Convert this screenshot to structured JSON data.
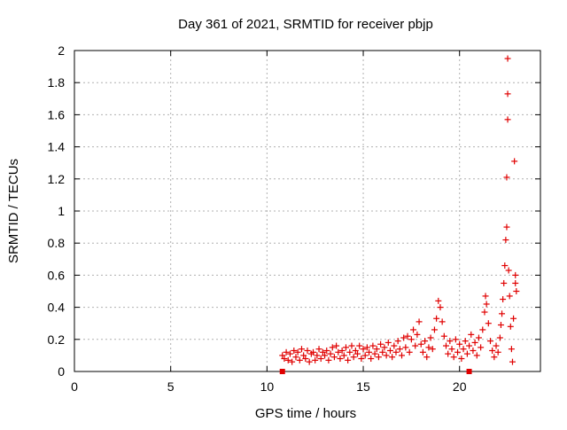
{
  "chart_data": {
    "type": "scatter",
    "title": "Day 361 of 2021, SRMTID for receiver pbjp",
    "xlabel": "GPS time / hours",
    "ylabel": "SRMTID / TECUs",
    "xlim": [
      0,
      24.2
    ],
    "ylim": [
      0,
      2
    ],
    "xticks": [
      0,
      5,
      10,
      15,
      20
    ],
    "yticks": [
      0,
      0.2,
      0.4,
      0.6,
      0.8,
      1,
      1.2,
      1.4,
      1.6,
      1.8,
      2
    ],
    "xtick_labels": [
      "0",
      "5",
      "10",
      "15",
      "20"
    ],
    "ytick_labels": [
      "0",
      "0.2",
      "0.4",
      "0.6",
      "0.8",
      "1",
      "1.2",
      "1.4",
      "1.6",
      "1.8",
      "2"
    ],
    "grid": true,
    "marker": "+",
    "marker_color": "#e00000",
    "series": [
      {
        "name": "SRMTID",
        "points": [
          [
            10.8,
            0.1
          ],
          [
            10.9,
            0.08
          ],
          [
            11.0,
            0.12
          ],
          [
            11.1,
            0.07
          ],
          [
            11.2,
            0.11
          ],
          [
            11.3,
            0.06
          ],
          [
            11.4,
            0.13
          ],
          [
            11.5,
            0.09
          ],
          [
            11.6,
            0.12
          ],
          [
            11.7,
            0.07
          ],
          [
            11.8,
            0.14
          ],
          [
            11.9,
            0.1
          ],
          [
            12.0,
            0.08
          ],
          [
            12.1,
            0.13
          ],
          [
            12.2,
            0.06
          ],
          [
            12.3,
            0.11
          ],
          [
            12.4,
            0.12
          ],
          [
            12.5,
            0.07
          ],
          [
            12.6,
            0.1
          ],
          [
            12.7,
            0.14
          ],
          [
            12.8,
            0.08
          ],
          [
            12.9,
            0.12
          ],
          [
            13.0,
            0.1
          ],
          [
            13.1,
            0.13
          ],
          [
            13.2,
            0.07
          ],
          [
            13.3,
            0.11
          ],
          [
            13.4,
            0.15
          ],
          [
            13.5,
            0.09
          ],
          [
            13.6,
            0.16
          ],
          [
            13.7,
            0.12
          ],
          [
            13.8,
            0.08
          ],
          [
            13.9,
            0.13
          ],
          [
            14.0,
            0.1
          ],
          [
            14.1,
            0.15
          ],
          [
            14.2,
            0.07
          ],
          [
            14.3,
            0.12
          ],
          [
            14.4,
            0.16
          ],
          [
            14.5,
            0.09
          ],
          [
            14.6,
            0.13
          ],
          [
            14.7,
            0.11
          ],
          [
            14.8,
            0.16
          ],
          [
            14.9,
            0.08
          ],
          [
            15.0,
            0.14
          ],
          [
            15.1,
            0.1
          ],
          [
            15.2,
            0.15
          ],
          [
            15.3,
            0.12
          ],
          [
            15.4,
            0.08
          ],
          [
            15.5,
            0.16
          ],
          [
            15.6,
            0.11
          ],
          [
            15.7,
            0.14
          ],
          [
            15.8,
            0.09
          ],
          [
            15.9,
            0.17
          ],
          [
            16.0,
            0.12
          ],
          [
            16.1,
            0.15
          ],
          [
            16.2,
            0.1
          ],
          [
            16.3,
            0.18
          ],
          [
            16.4,
            0.13
          ],
          [
            16.5,
            0.09
          ],
          [
            16.6,
            0.16
          ],
          [
            16.7,
            0.12
          ],
          [
            16.8,
            0.19
          ],
          [
            16.9,
            0.14
          ],
          [
            17.0,
            0.1
          ],
          [
            17.1,
            0.21
          ],
          [
            17.2,
            0.15
          ],
          [
            17.3,
            0.22
          ],
          [
            17.4,
            0.12
          ],
          [
            17.5,
            0.2
          ],
          [
            17.6,
            0.26
          ],
          [
            17.7,
            0.16
          ],
          [
            17.8,
            0.23
          ],
          [
            17.9,
            0.31
          ],
          [
            18.0,
            0.17
          ],
          [
            18.1,
            0.12
          ],
          [
            18.2,
            0.19
          ],
          [
            18.3,
            0.09
          ],
          [
            18.4,
            0.15
          ],
          [
            18.5,
            0.21
          ],
          [
            18.6,
            0.14
          ],
          [
            18.7,
            0.26
          ],
          [
            18.8,
            0.33
          ],
          [
            18.9,
            0.44
          ],
          [
            19.0,
            0.4
          ],
          [
            19.1,
            0.31
          ],
          [
            19.2,
            0.22
          ],
          [
            19.3,
            0.16
          ],
          [
            19.4,
            0.11
          ],
          [
            19.5,
            0.19
          ],
          [
            19.6,
            0.14
          ],
          [
            19.7,
            0.09
          ],
          [
            19.8,
            0.2
          ],
          [
            19.9,
            0.12
          ],
          [
            20.0,
            0.17
          ],
          [
            20.1,
            0.08
          ],
          [
            20.2,
            0.14
          ],
          [
            20.3,
            0.19
          ],
          [
            20.4,
            0.11
          ],
          [
            20.5,
            0.16
          ],
          [
            20.6,
            0.23
          ],
          [
            20.7,
            0.13
          ],
          [
            20.8,
            0.18
          ],
          [
            20.9,
            0.1
          ],
          [
            21.0,
            0.21
          ],
          [
            21.1,
            0.15
          ],
          [
            21.2,
            0.26
          ],
          [
            21.3,
            0.37
          ],
          [
            21.35,
            0.47
          ],
          [
            21.4,
            0.42
          ],
          [
            21.5,
            0.3
          ],
          [
            21.6,
            0.19
          ],
          [
            21.7,
            0.13
          ],
          [
            21.8,
            0.09
          ],
          [
            21.9,
            0.16
          ],
          [
            22.0,
            0.12
          ],
          [
            22.1,
            0.21
          ],
          [
            22.15,
            0.29
          ],
          [
            22.2,
            0.36
          ],
          [
            22.25,
            0.45
          ],
          [
            22.3,
            0.55
          ],
          [
            22.35,
            0.66
          ],
          [
            22.4,
            0.82
          ],
          [
            22.45,
            0.9
          ],
          [
            22.45,
            1.21
          ],
          [
            22.5,
            1.57
          ],
          [
            22.5,
            1.73
          ],
          [
            22.5,
            1.95
          ],
          [
            22.55,
            0.63
          ],
          [
            22.6,
            0.47
          ],
          [
            22.65,
            0.28
          ],
          [
            22.7,
            0.14
          ],
          [
            22.75,
            0.06
          ],
          [
            22.8,
            0.33
          ],
          [
            22.85,
            1.31
          ],
          [
            22.9,
            0.55
          ],
          [
            22.9,
            0.6
          ],
          [
            22.95,
            0.5
          ]
        ]
      }
    ],
    "bottom_markers": [
      10.8,
      20.5
    ]
  }
}
